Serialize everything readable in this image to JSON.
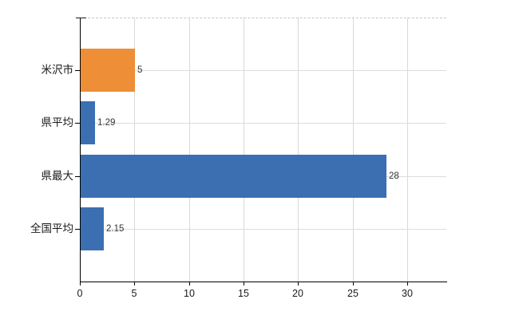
{
  "chart_data": {
    "type": "bar",
    "orientation": "horizontal",
    "title": "",
    "categories": [
      "米沢市",
      "県平均",
      "県最大",
      "全国平均"
    ],
    "values": [
      5,
      1.29,
      28,
      2.15
    ],
    "value_labels": [
      "5",
      "1.29",
      "28",
      "2.15"
    ],
    "bar_colors": [
      "#EE8E36",
      "#3B6FB1",
      "#3B6FB1",
      "#3B6FB1"
    ],
    "highlight_color": "#EE8E36",
    "default_color": "#3B6FB1",
    "x_ticks": [
      0,
      5,
      10,
      15,
      20,
      25,
      30
    ],
    "x_tick_labels": [
      "0",
      "5",
      "10",
      "15",
      "20",
      "25",
      "30"
    ],
    "xlim": [
      0,
      33.6
    ],
    "xlabel": "",
    "ylabel": "",
    "grid": true,
    "grid_color": "#D9D9D9",
    "axis_color": "#000000",
    "text_color": "#1A1A1A",
    "background": "#FFFFFF",
    "legend": false
  }
}
